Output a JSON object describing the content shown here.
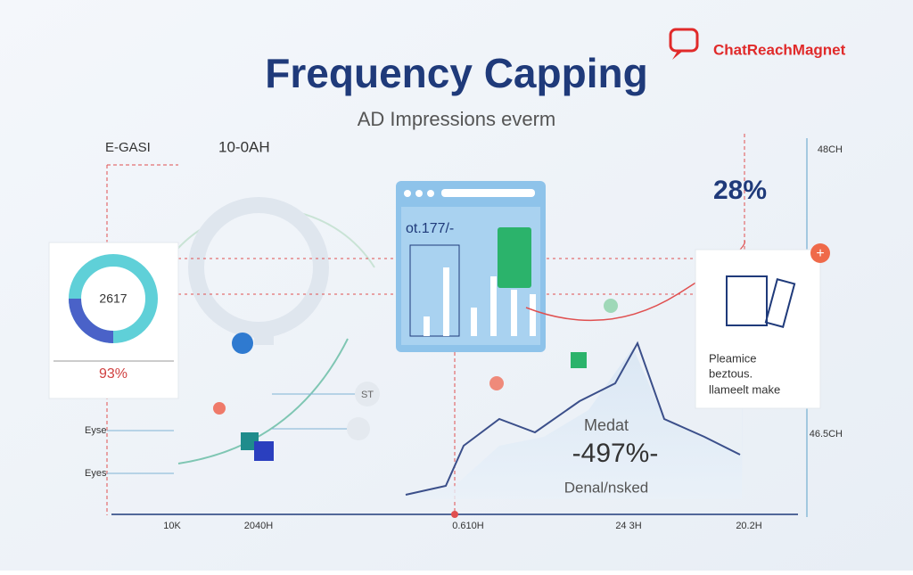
{
  "header": {
    "brand": "ChatReachMagnet",
    "title": "Frequency Capping",
    "subtitle": "AD Impressions everm"
  },
  "top_labels": {
    "left": "E-GASI",
    "center": "10-0AH"
  },
  "donut_card": {
    "center": "2617",
    "percent": "93%"
  },
  "window": {
    "label": "ot.177/-"
  },
  "stat": "28%",
  "right_axis": {
    "top": "48CH",
    "bottom": "46.5CH"
  },
  "note_card": {
    "items": [
      "Pleamice",
      "beztous.",
      "llameelt make"
    ]
  },
  "peak": {
    "name": "Medat",
    "value": "-497%-",
    "caption": "Denal/nsked"
  },
  "side_labels": [
    "Eyse",
    "Eyes"
  ],
  "bubble": "ST",
  "axis_labels": [
    "10K",
    "2040H",
    "0.610H",
    "24 3H",
    "20.2H"
  ]
}
